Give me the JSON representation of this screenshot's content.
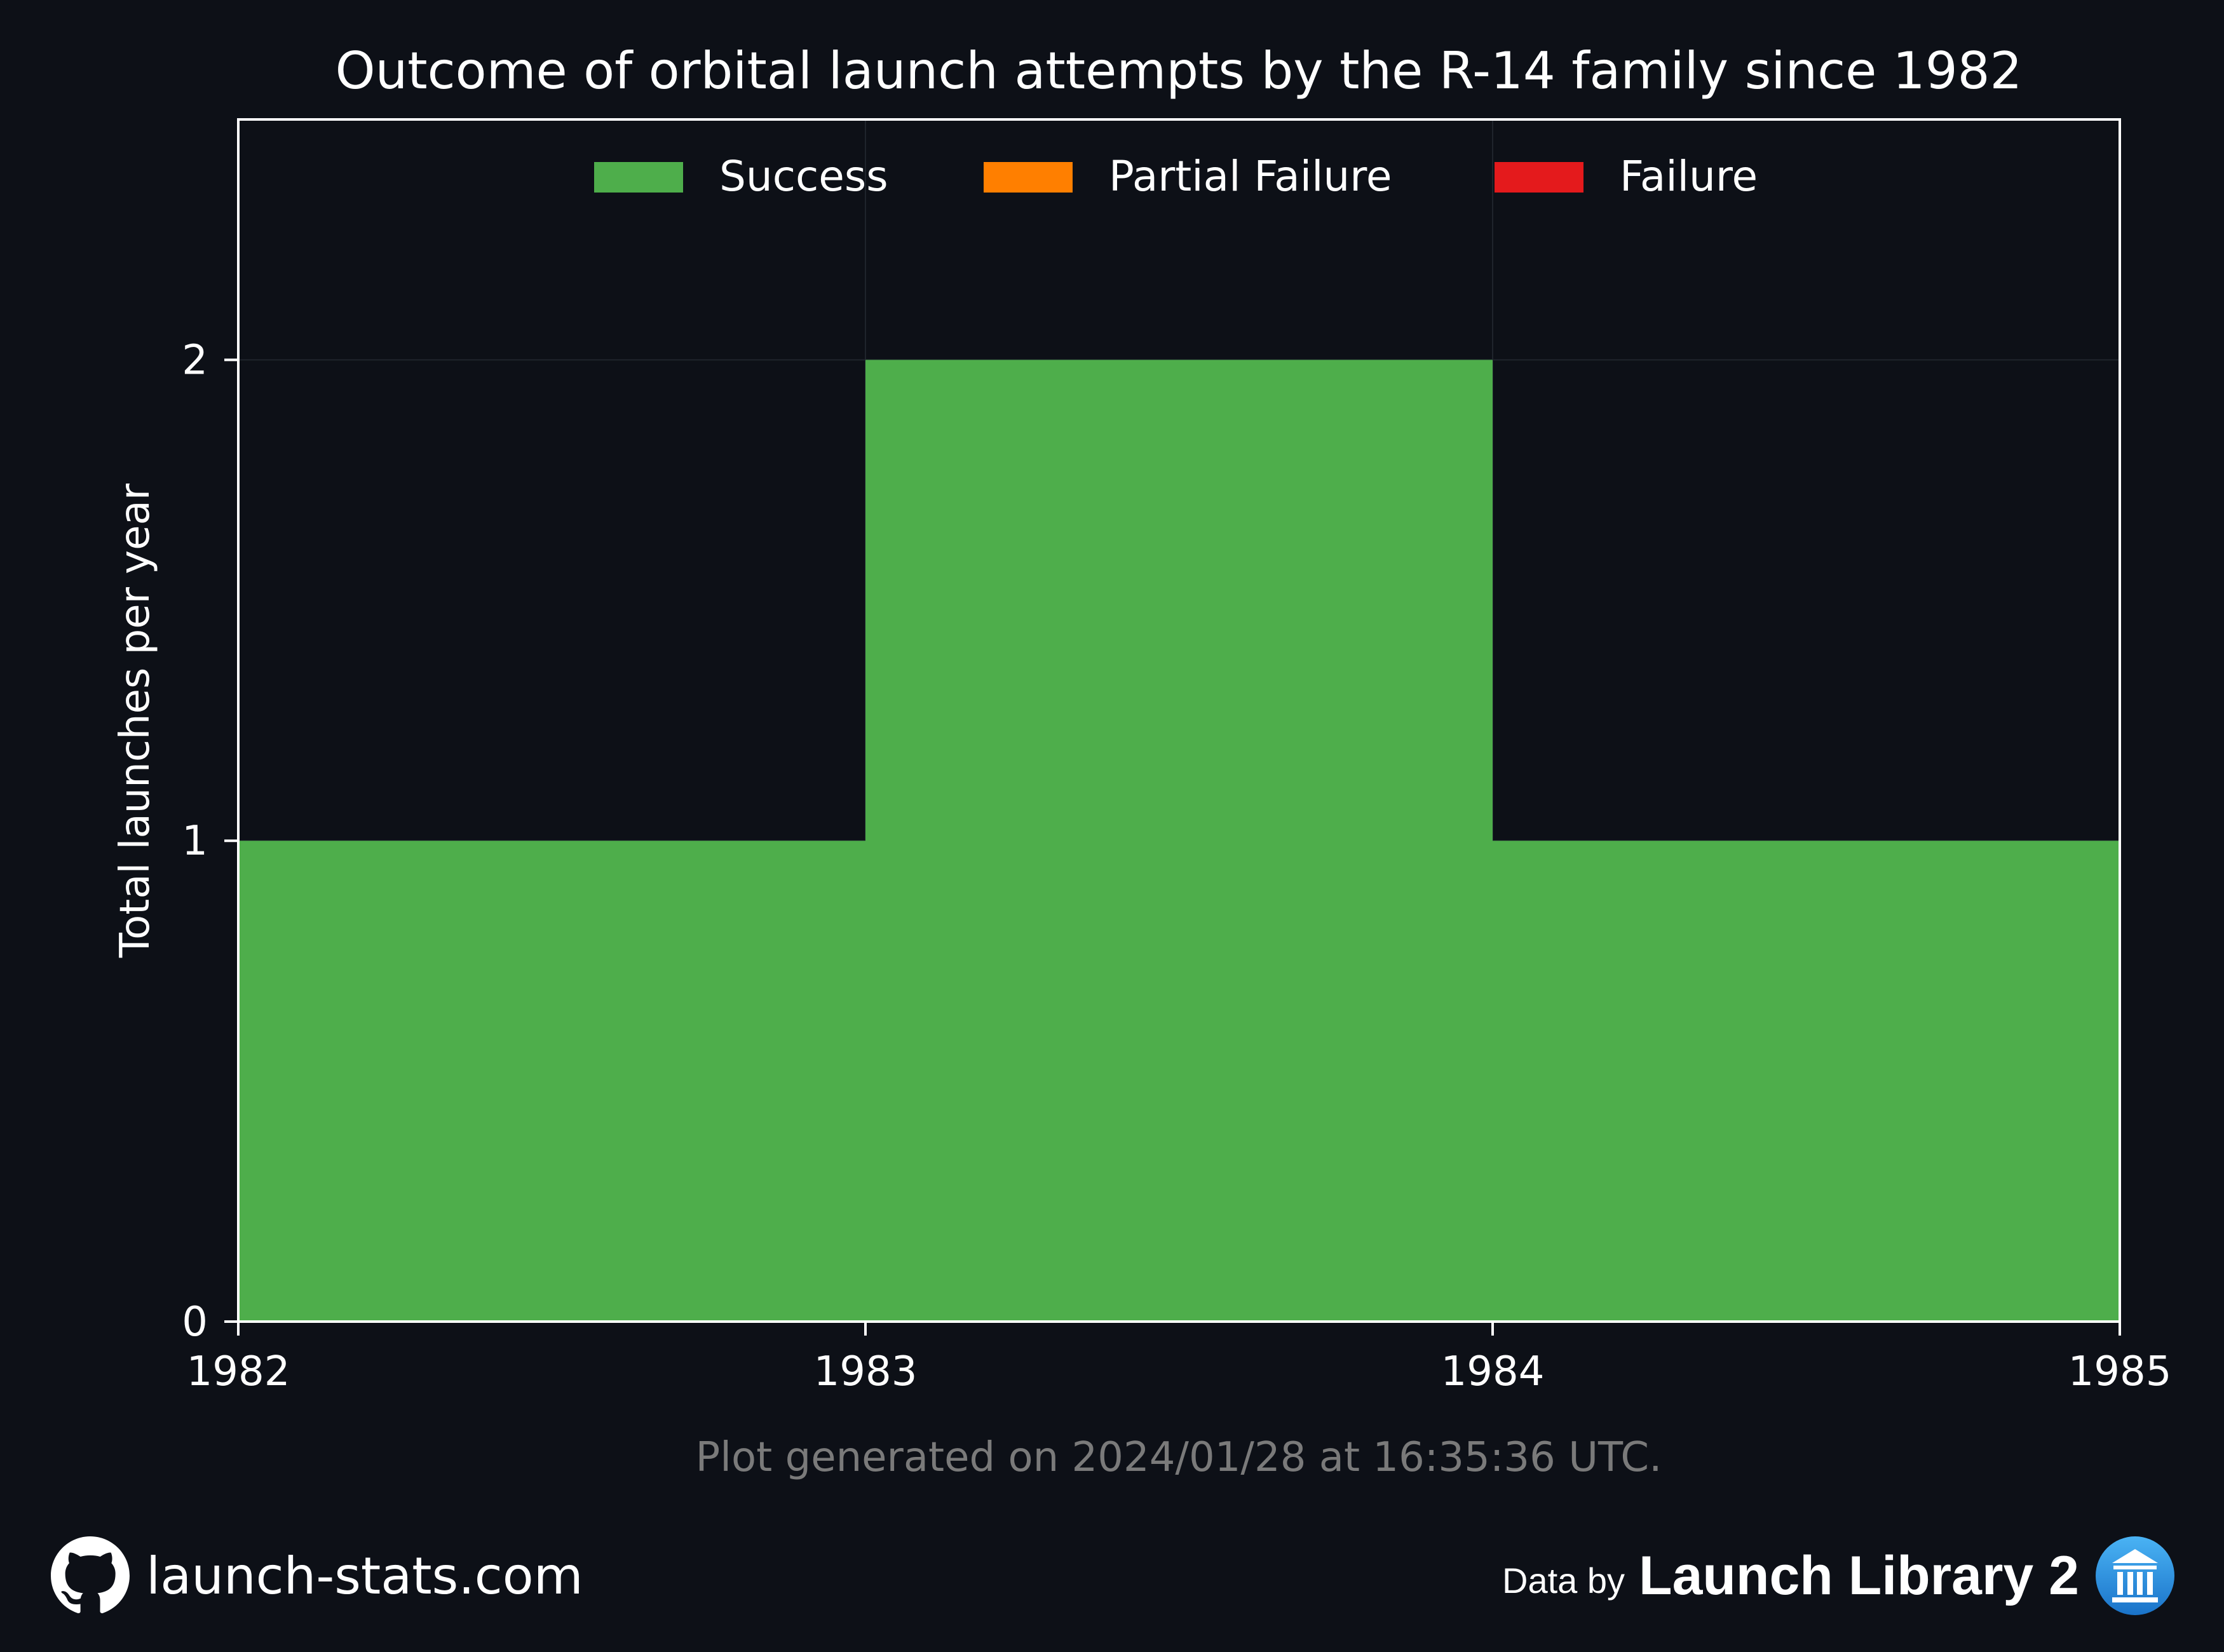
{
  "chart_data": {
    "type": "area",
    "title": "Outcome of orbital launch attempts by the R-14 family since 1982",
    "xlabel": "",
    "ylabel": "Total launches per year",
    "x_edges": [
      1982,
      1983,
      1984,
      1985
    ],
    "x_ticks": [
      "1982",
      "1983",
      "1984",
      "1985"
    ],
    "y_ticks": [
      "0",
      "1",
      "2"
    ],
    "ylim": [
      0,
      2.5
    ],
    "xlim": [
      1982,
      1985
    ],
    "grid": true,
    "legend_position": "top-center",
    "series": [
      {
        "name": "Success",
        "color": "#4eae4b",
        "values": [
          1,
          2,
          1
        ]
      },
      {
        "name": "Partial Failure",
        "color": "#ff7f00",
        "values": [
          0,
          0,
          0
        ]
      },
      {
        "name": "Failure",
        "color": "#e41a1c",
        "values": [
          0,
          0,
          0
        ]
      }
    ],
    "note": "Plot generated on 2024/01/28 at 16:35:36 UTC."
  },
  "footer": {
    "site": "launch-stats.com",
    "data_by": "Data by",
    "source": "Launch Library 2",
    "github_icon": "github-icon",
    "source_icon": "launch-library-logo-icon"
  }
}
